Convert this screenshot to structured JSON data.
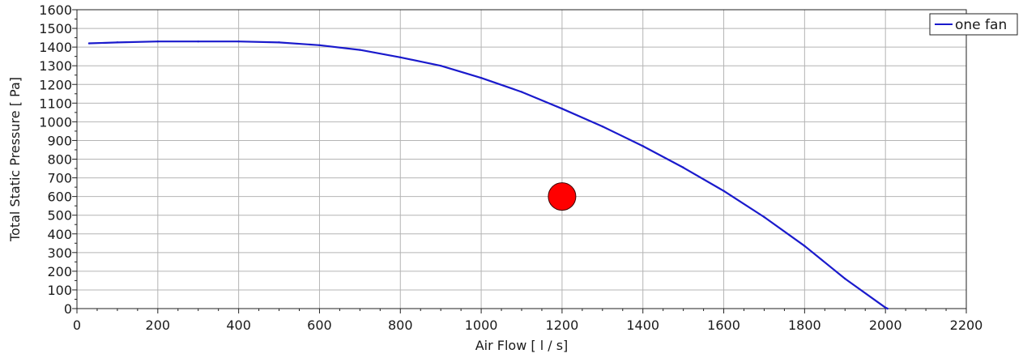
{
  "chart_data": {
    "type": "line",
    "title": "",
    "xlabel": "Air Flow  [ l / s]",
    "ylabel": "Total Static Pressure  [ Pa]",
    "xlim": [
      0,
      2200
    ],
    "ylim": [
      0,
      1600
    ],
    "x_ticks": [
      0,
      200,
      400,
      600,
      800,
      1000,
      1200,
      1400,
      1600,
      1800,
      2000,
      2200
    ],
    "y_ticks": [
      0,
      100,
      200,
      300,
      400,
      500,
      600,
      700,
      800,
      900,
      1000,
      1100,
      1200,
      1300,
      1400,
      1500,
      1600
    ],
    "grid": true,
    "legend_position": "top-right",
    "series": [
      {
        "name": "one fan",
        "color": "#1a1acc",
        "x": [
          30,
          100,
          200,
          300,
          400,
          500,
          600,
          700,
          800,
          900,
          1000,
          1100,
          1200,
          1300,
          1400,
          1500,
          1600,
          1700,
          1800,
          1900,
          2000,
          2005
        ],
        "y": [
          1420,
          1425,
          1430,
          1430,
          1430,
          1425,
          1410,
          1385,
          1345,
          1300,
          1235,
          1160,
          1070,
          975,
          870,
          755,
          630,
          490,
          335,
          160,
          5,
          0
        ]
      }
    ],
    "operating_point": {
      "x": 1200,
      "y": 600,
      "color": "#ff0000"
    }
  }
}
